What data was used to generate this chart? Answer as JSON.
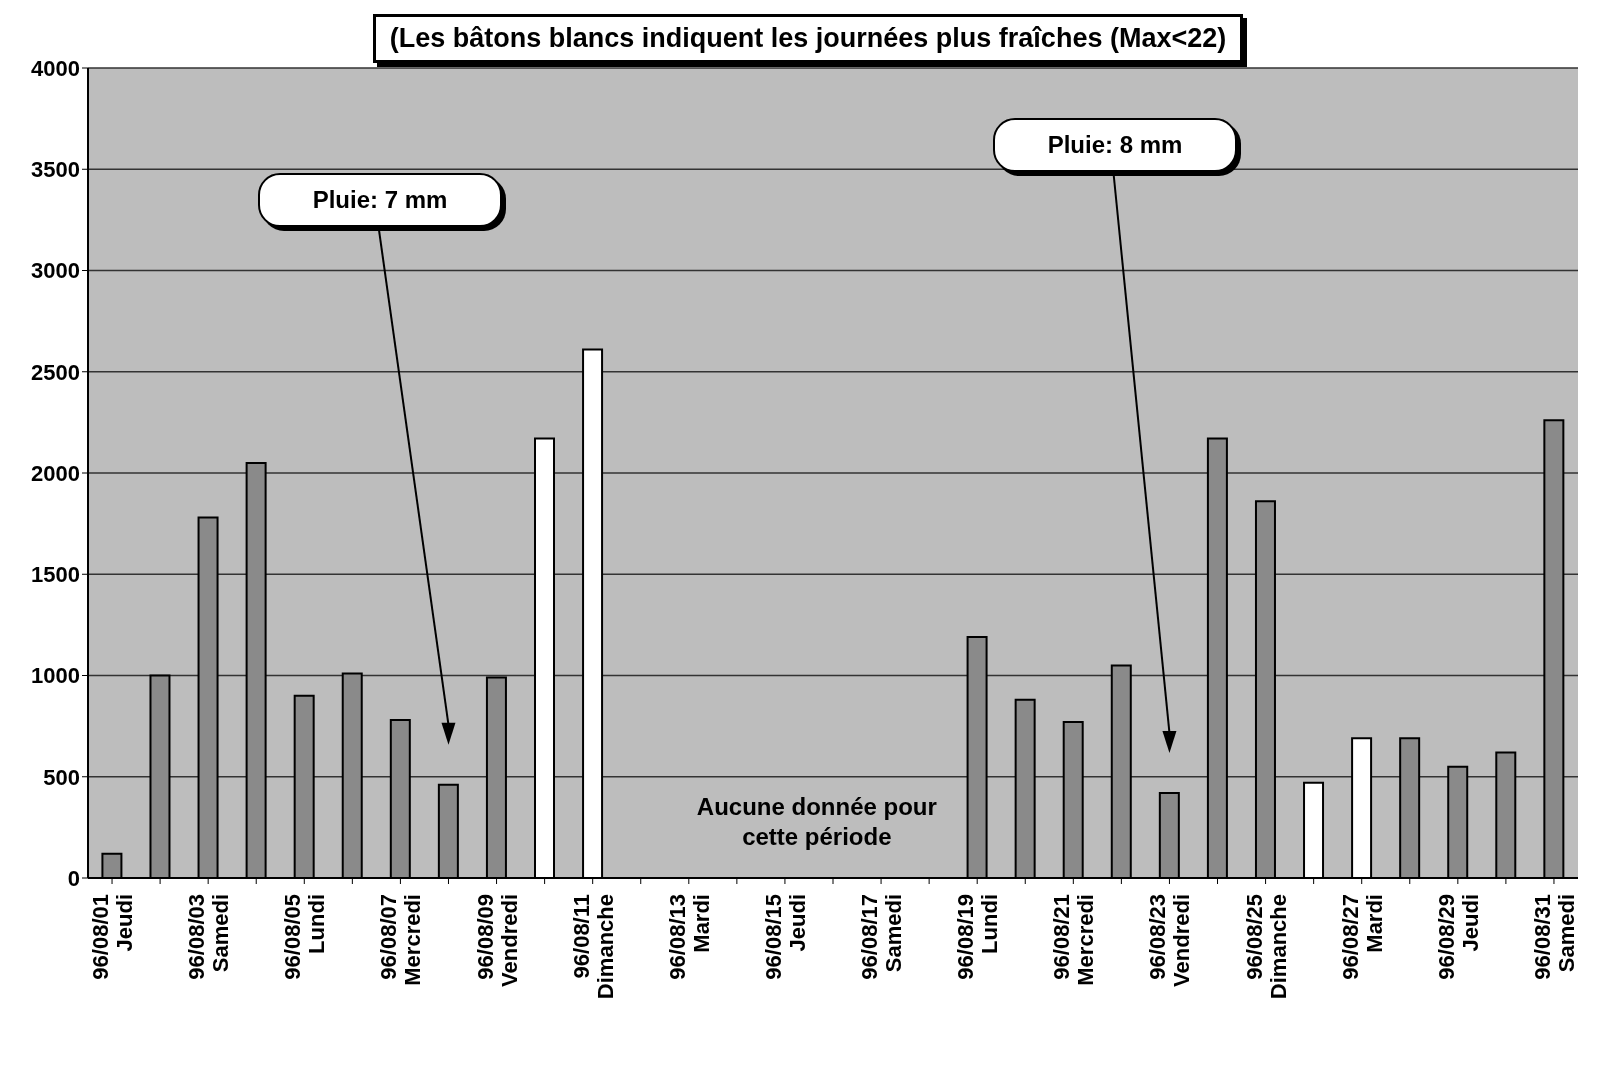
{
  "chart_data": {
    "type": "bar",
    "title": "(Les bâtons blancs indiquent les journées plus fraîches (Max<22)",
    "categories": [
      "96/08/01 Jeudi",
      null,
      "96/08/03 Samedi",
      null,
      "96/08/05 Lundi",
      null,
      "96/08/07 Mercredi",
      null,
      "96/08/09 Vendredi",
      null,
      "96/08/11 Dimanche",
      null,
      "96/08/13 Mardi",
      null,
      "96/08/15 Jeudi",
      null,
      "96/08/17 Samedi",
      null,
      "96/08/19 Lundi",
      null,
      "96/08/21 Mercredi",
      null,
      "96/08/23 Vendredi",
      null,
      "96/08/25 Dimanche",
      null,
      "96/08/27 Mardi",
      null,
      "96/08/29 Jeudi",
      null,
      "96/08/31 Samedi"
    ],
    "values": [
      120,
      1000,
      1780,
      2050,
      900,
      1010,
      780,
      460,
      990,
      2170,
      2610,
      null,
      null,
      null,
      null,
      null,
      null,
      null,
      1190,
      880,
      770,
      1050,
      420,
      2170,
      1860,
      470,
      690,
      690,
      550,
      620,
      2260
    ],
    "colors": [
      "#8a8a8a",
      "#8a8a8a",
      "#8a8a8a",
      "#8a8a8a",
      "#8a8a8a",
      "#8a8a8a",
      "#8a8a8a",
      "#8a8a8a",
      "#8a8a8a",
      "#ffffff",
      "#ffffff",
      "#8a8a8a",
      "#8a8a8a",
      "#8a8a8a",
      "#8a8a8a",
      "#8a8a8a",
      "#8a8a8a",
      "#8a8a8a",
      "#8a8a8a",
      "#8a8a8a",
      "#8a8a8a",
      "#8a8a8a",
      "#8a8a8a",
      "#8a8a8a",
      "#8a8a8a",
      "#ffffff",
      "#ffffff",
      "#8a8a8a",
      "#8a8a8a",
      "#8a8a8a",
      "#8a8a8a"
    ],
    "ylim": [
      0,
      4000
    ],
    "yticks": [
      0,
      500,
      1000,
      1500,
      2000,
      2500,
      3000,
      3500,
      4000
    ],
    "grid": "y",
    "legend": false,
    "annotations": [
      "Pluie: 7 mm",
      "Pluie: 8 mm",
      "Aucune donnée pour cette période"
    ]
  }
}
